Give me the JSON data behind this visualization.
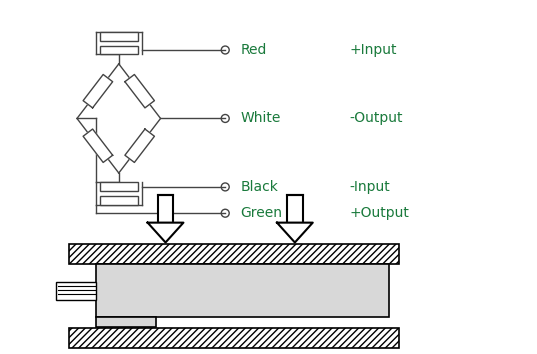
{
  "bg_color": "#ffffff",
  "text_color": "#1a7a3c",
  "line_color": "#444444",
  "labels": [
    "Red",
    "White",
    "Black",
    "Green"
  ],
  "descriptions": [
    "+Input",
    "-Output",
    "-Input",
    "+Output"
  ],
  "font_size_label": 10,
  "font_size_desc": 10
}
